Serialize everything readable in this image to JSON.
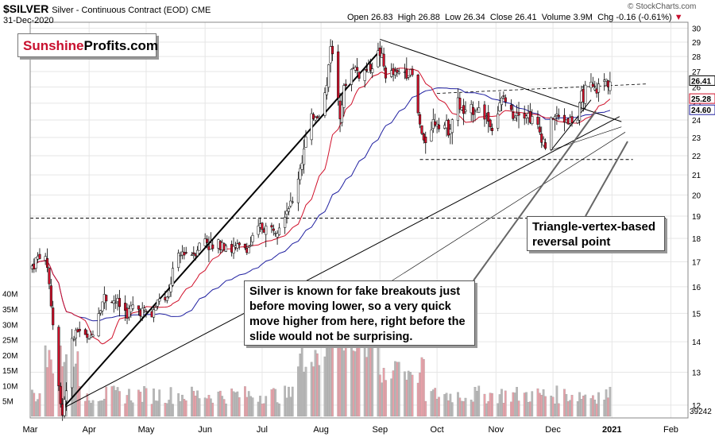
{
  "header": {
    "symbol": "$SILVER",
    "description": "Silver - Continuous Contract (EOD)",
    "exchange": "CME",
    "date": "31-Dec-2020",
    "open_label": "Open",
    "open": "26.83",
    "high_label": "High",
    "high": "26.88",
    "low_label": "Low",
    "low": "26.34",
    "close_label": "Close",
    "close": "26.41",
    "volume_label": "Volume",
    "volume": "3.9M",
    "chg_label": "Chg",
    "chg": "-0.16 (-0.61%)",
    "source": "© StockCharts.com"
  },
  "logo": {
    "part1": "Sunshine",
    "part2": "Profits.com"
  },
  "notes": {
    "fake_breakouts": "Silver is known for fake breakouts just before moving lower, so a very quick move higher from here, right before the slide would not be surprising.",
    "vertex": "Triangle-vertex-based reversal point"
  },
  "price_labels": {
    "last": "26.41",
    "ma_red": "25.28",
    "ma_blue": "24.60",
    "volume": "39242"
  },
  "colors": {
    "up": "#ffffff",
    "down": "#d0102a",
    "ma_red": "#d0102a",
    "ma_blue": "#1f1fa0",
    "grid": "#e6e6e6",
    "vol_up": "#b8b8b8",
    "vol_down": "#e8a0a8"
  },
  "chart_data": {
    "type": "candlestick",
    "x_ticks": [
      "Mar",
      "Apr",
      "May",
      "Jun",
      "Jul",
      "Aug",
      "Sep",
      "Oct",
      "Nov",
      "Dec",
      "2021",
      "Feb"
    ],
    "y_ticks": [
      12,
      13,
      14,
      15,
      16,
      17,
      18,
      19,
      20,
      21,
      22,
      23,
      24,
      25,
      26,
      27,
      28,
      29,
      30
    ],
    "volume_ticks": [
      "5M",
      "10M",
      "15M",
      "20M",
      "25M",
      "30M",
      "35M",
      "40M"
    ],
    "y_scale": "log",
    "ylim": [
      11.7,
      30.2
    ],
    "volume_max": "42M",
    "horizontal_levels": [
      18.9,
      21.8
    ],
    "price_path": [
      [
        "2020-03-02",
        16.8
      ],
      [
        "2020-03-06",
        17.3
      ],
      [
        "2020-03-10",
        16.9
      ],
      [
        "2020-03-13",
        14.6
      ],
      [
        "2020-03-16",
        12.5
      ],
      [
        "2020-03-18",
        11.8
      ],
      [
        "2020-03-20",
        12.6
      ],
      [
        "2020-03-24",
        14.3
      ],
      [
        "2020-03-27",
        14.4
      ],
      [
        "2020-04-01",
        14.0
      ],
      [
        "2020-04-06",
        15.1
      ],
      [
        "2020-04-09",
        15.6
      ],
      [
        "2020-04-14",
        15.5
      ],
      [
        "2020-04-17",
        15.3
      ],
      [
        "2020-04-21",
        15.0
      ],
      [
        "2020-04-24",
        15.2
      ],
      [
        "2020-04-29",
        15.1
      ],
      [
        "2020-05-04",
        14.9
      ],
      [
        "2020-05-08",
        15.6
      ],
      [
        "2020-05-12",
        15.4
      ],
      [
        "2020-05-15",
        16.6
      ],
      [
        "2020-05-20",
        17.4
      ],
      [
        "2020-05-26",
        17.4
      ],
      [
        "2020-06-01",
        18.0
      ],
      [
        "2020-06-05",
        17.5
      ],
      [
        "2020-06-10",
        17.9
      ],
      [
        "2020-06-15",
        17.5
      ],
      [
        "2020-06-19",
        17.6
      ],
      [
        "2020-06-24",
        17.6
      ],
      [
        "2020-06-30",
        18.5
      ],
      [
        "2020-07-06",
        18.4
      ],
      [
        "2020-07-10",
        18.7
      ],
      [
        "2020-07-14",
        19.4
      ],
      [
        "2020-07-17",
        19.6
      ],
      [
        "2020-07-21",
        21.4
      ],
      [
        "2020-07-24",
        22.8
      ],
      [
        "2020-07-28",
        24.3
      ],
      [
        "2020-07-31",
        24.4
      ],
      [
        "2020-08-04",
        26.0
      ],
      [
        "2020-08-06",
        29.0
      ],
      [
        "2020-08-11",
        24.6
      ],
      [
        "2020-08-14",
        26.3
      ],
      [
        "2020-08-18",
        27.4
      ],
      [
        "2020-08-21",
        26.8
      ],
      [
        "2020-08-26",
        27.2
      ],
      [
        "2020-09-01",
        28.3
      ],
      [
        "2020-09-04",
        26.8
      ],
      [
        "2020-09-10",
        26.8
      ],
      [
        "2020-09-15",
        27.1
      ],
      [
        "2020-09-18",
        26.7
      ],
      [
        "2020-09-21",
        24.3
      ],
      [
        "2020-09-24",
        22.6
      ],
      [
        "2020-09-28",
        23.8
      ],
      [
        "2020-10-02",
        24.0
      ],
      [
        "2020-10-07",
        23.5
      ],
      [
        "2020-10-12",
        25.0
      ],
      [
        "2020-10-16",
        24.2
      ],
      [
        "2020-10-21",
        24.8
      ],
      [
        "2020-10-27",
        24.2
      ],
      [
        "2020-10-30",
        23.6
      ],
      [
        "2020-11-05",
        25.4
      ],
      [
        "2020-11-09",
        24.3
      ],
      [
        "2020-11-13",
        24.7
      ],
      [
        "2020-11-19",
        24.2
      ],
      [
        "2020-11-24",
        23.3
      ],
      [
        "2020-11-27",
        22.6
      ],
      [
        "2020-12-01",
        24.2
      ],
      [
        "2020-12-04",
        24.1
      ],
      [
        "2020-12-09",
        24.0
      ],
      [
        "2020-12-14",
        24.0
      ],
      [
        "2020-12-16",
        25.3
      ],
      [
        "2020-12-18",
        25.8
      ],
      [
        "2020-12-21",
        25.9
      ],
      [
        "2020-12-23",
        25.7
      ],
      [
        "2020-12-28",
        26.4
      ],
      [
        "2020-12-31",
        26.41
      ]
    ],
    "annotations": [
      "Silver is known for fake breakouts just before moving lower, so a very quick move higher from here, right before the slide would not be surprising.",
      "Triangle-vertex-based reversal point"
    ]
  }
}
